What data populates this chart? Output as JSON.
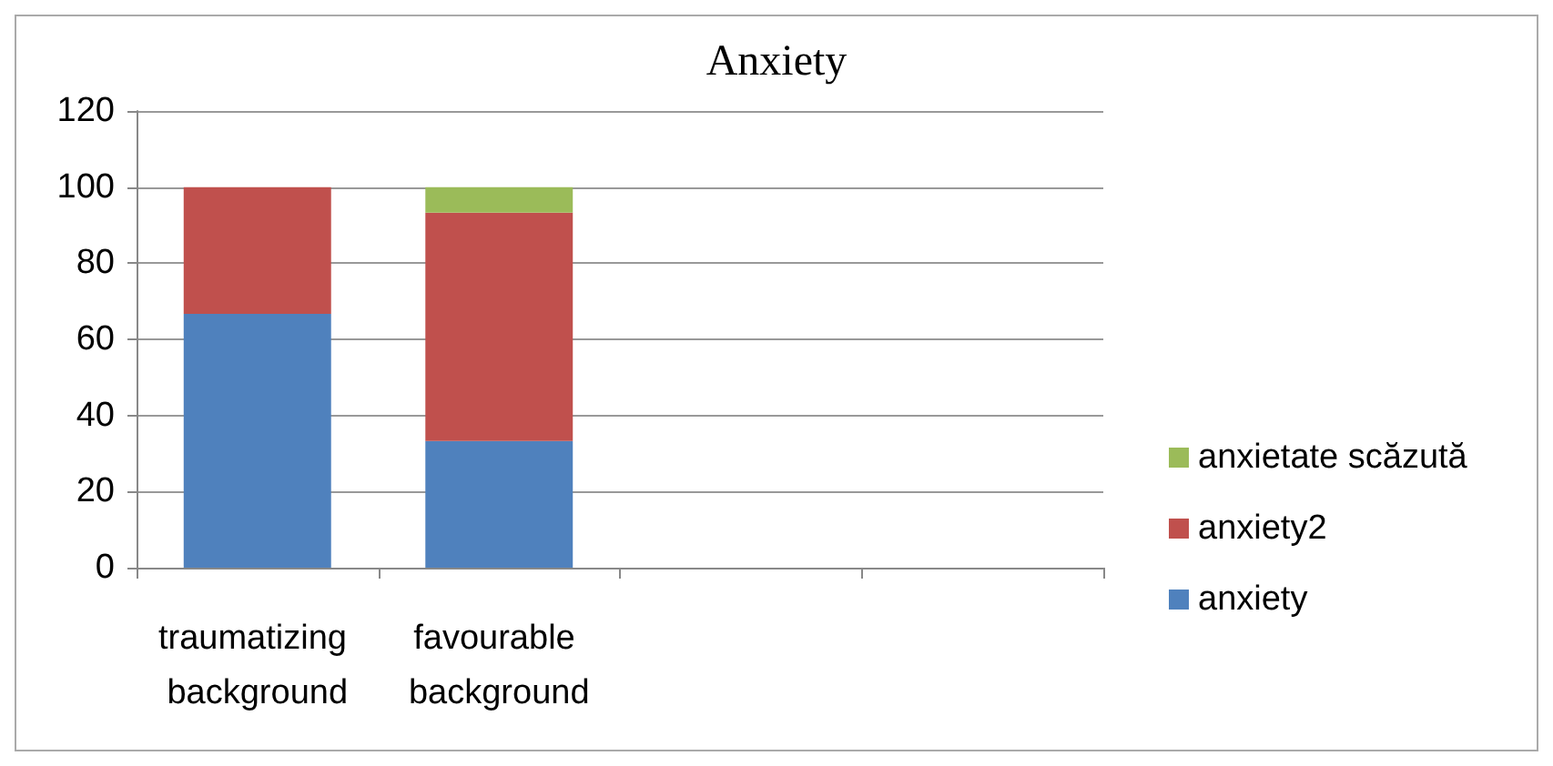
{
  "chart_data": {
    "type": "bar",
    "title": "Anxiety",
    "stacked": true,
    "grid": "y",
    "legend": "right",
    "categories": [
      "traumatizing background",
      "favourable background",
      null,
      null
    ],
    "series": [
      {
        "name": "anxiety",
        "color": "#4f81bd",
        "values": [
          66.7,
          33.3,
          null,
          null
        ]
      },
      {
        "name": "anxiety2",
        "color": "#c0504d",
        "values": [
          33.3,
          60,
          null,
          null
        ]
      },
      {
        "name": "anxietate scăzută",
        "color": "#9bbb59",
        "values": [
          0,
          6.7,
          null,
          null
        ]
      }
    ],
    "ylim": [
      0,
      120
    ],
    "yticks": [
      0,
      20,
      40,
      60,
      80,
      100,
      120
    ]
  }
}
